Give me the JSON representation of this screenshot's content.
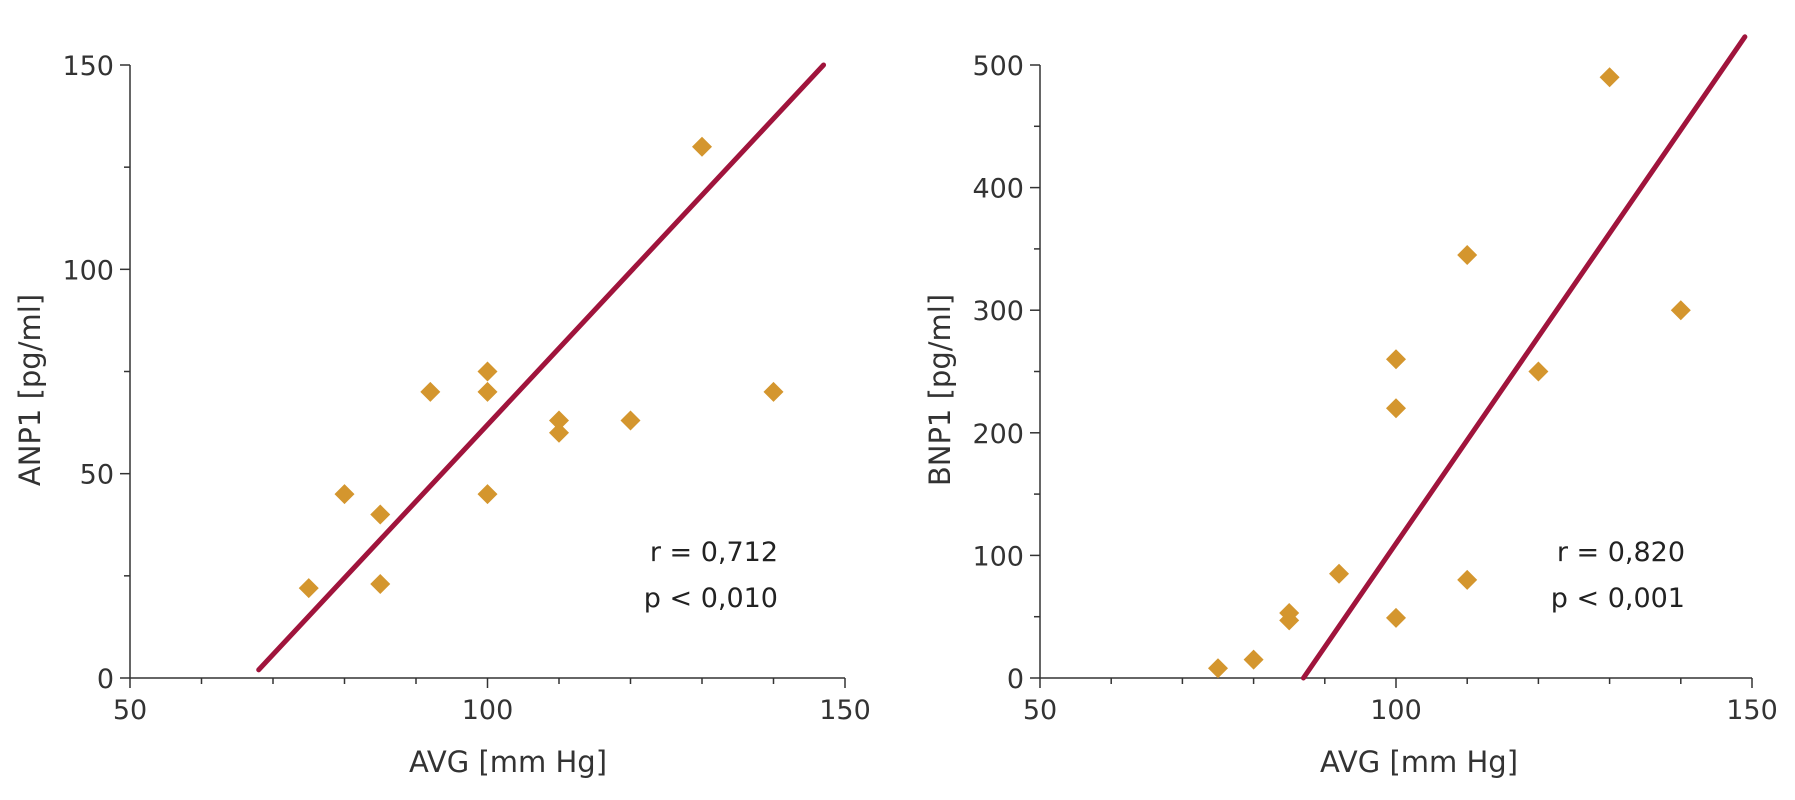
{
  "colors": {
    "marker": "#D4962E",
    "fit_line": "#A0143C",
    "axis": "#333333"
  },
  "chart_data": [
    {
      "type": "scatter",
      "xlabel": "AVG [mm Hg]",
      "ylabel": "ANP1 [pg/ml]",
      "xlim": [
        50,
        150
      ],
      "ylim": [
        0,
        150
      ],
      "xticks": [
        "50",
        "100",
        "150"
      ],
      "yticks": [
        "0",
        "50",
        "100",
        "150"
      ],
      "marker": "diamond",
      "points": [
        {
          "x": 75,
          "y": 22
        },
        {
          "x": 80,
          "y": 45
        },
        {
          "x": 85,
          "y": 40
        },
        {
          "x": 85,
          "y": 23
        },
        {
          "x": 92,
          "y": 70
        },
        {
          "x": 100,
          "y": 75
        },
        {
          "x": 100,
          "y": 70
        },
        {
          "x": 100,
          "y": 45
        },
        {
          "x": 110,
          "y": 63
        },
        {
          "x": 110,
          "y": 60
        },
        {
          "x": 120,
          "y": 63
        },
        {
          "x": 130,
          "y": 130
        },
        {
          "x": 140,
          "y": 70
        }
      ],
      "fit_line": {
        "x1": 68,
        "y1": 2,
        "x2": 147,
        "y2": 150
      },
      "annotation": [
        "r = 0,712",
        "p < 0,010"
      ],
      "grid": false
    },
    {
      "type": "scatter",
      "xlabel": "AVG [mm Hg]",
      "ylabel": "BNP1 [pg/ml]",
      "xlim": [
        50,
        150
      ],
      "ylim": [
        0,
        500
      ],
      "xticks": [
        "50",
        "100",
        "150"
      ],
      "yticks": [
        "0",
        "100",
        "200",
        "300",
        "400",
        "500"
      ],
      "marker": "diamond",
      "points": [
        {
          "x": 75,
          "y": 8
        },
        {
          "x": 80,
          "y": 15
        },
        {
          "x": 85,
          "y": 53
        },
        {
          "x": 85,
          "y": 47
        },
        {
          "x": 92,
          "y": 85
        },
        {
          "x": 100,
          "y": 260
        },
        {
          "x": 100,
          "y": 220
        },
        {
          "x": 100,
          "y": 49
        },
        {
          "x": 110,
          "y": 345
        },
        {
          "x": 110,
          "y": 80
        },
        {
          "x": 120,
          "y": 250
        },
        {
          "x": 130,
          "y": 490
        },
        {
          "x": 140,
          "y": 300
        }
      ],
      "fit_line": {
        "x1": 87,
        "y1": 0,
        "x2": 149,
        "y2": 523
      },
      "annotation": [
        "r = 0,820",
        "p < 0,001"
      ],
      "grid": false
    }
  ]
}
